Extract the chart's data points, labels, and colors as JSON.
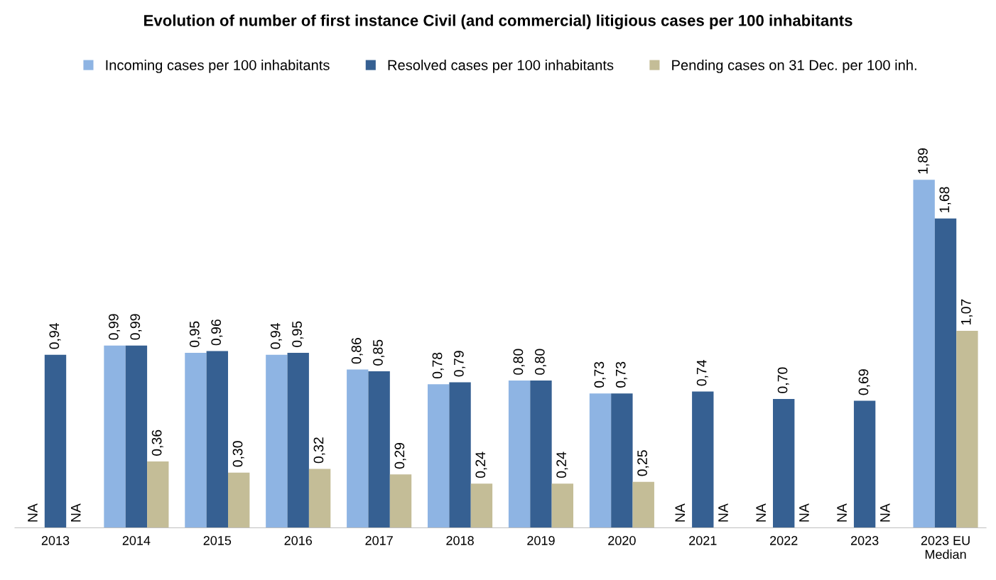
{
  "chart_data": {
    "type": "bar",
    "title": "Evolution of number of first instance Civil (and commercial) litigious cases per 100 inhabitants",
    "categories": [
      "2013",
      "2014",
      "2015",
      "2016",
      "2017",
      "2018",
      "2019",
      "2020",
      "2021",
      "2022",
      "2023",
      "2023 EU\nMedian"
    ],
    "series": [
      {
        "name": "Incoming cases per 100 inhabitants",
        "color": "#8eb4e3",
        "values": [
          null,
          0.99,
          0.95,
          0.94,
          0.86,
          0.78,
          0.8,
          0.73,
          null,
          null,
          null,
          1.89
        ],
        "value_labels": [
          "NA",
          "0,99",
          "0,95",
          "0,94",
          "0,86",
          "0,78",
          "0,80",
          "0,73",
          "NA",
          "NA",
          "NA",
          "1,89"
        ]
      },
      {
        "name": "Resolved cases per 100 inhabitants",
        "color": "#366092",
        "values": [
          0.94,
          0.99,
          0.96,
          0.95,
          0.85,
          0.79,
          0.8,
          0.73,
          0.74,
          0.7,
          0.69,
          1.68
        ],
        "value_labels": [
          "0,94",
          "0,99",
          "0,96",
          "0,95",
          "0,85",
          "0,79",
          "0,80",
          "0,73",
          "0,74",
          "0,70",
          "0,69",
          "1,68"
        ]
      },
      {
        "name": "Pending cases on 31 Dec. per 100 inh.",
        "color": "#c4bd97",
        "values": [
          null,
          0.36,
          0.3,
          0.32,
          0.29,
          0.24,
          0.24,
          0.25,
          null,
          null,
          null,
          1.07
        ],
        "value_labels": [
          "NA",
          "0,36",
          "0,30",
          "0,32",
          "0,29",
          "0,24",
          "0,24",
          "0,25",
          "NA",
          "NA",
          "NA",
          "1,07"
        ]
      }
    ],
    "legend": "top",
    "grid": false,
    "tick_labels": "x"
  }
}
